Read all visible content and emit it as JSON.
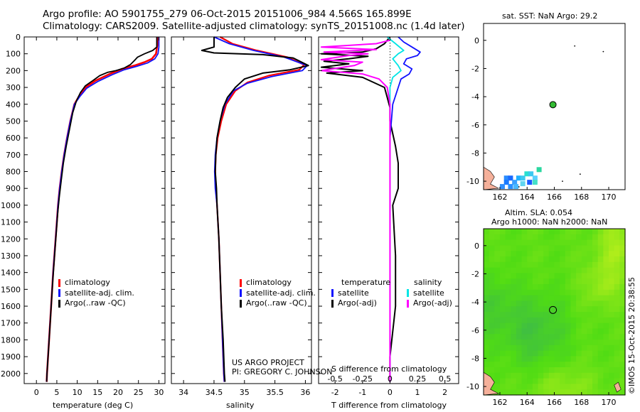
{
  "header": {
    "line1": "Argo profile: AO 5901755_279 06-Oct-2015 20151006_984 4.566S 165.899E",
    "line2": "Climatology: CARS2009. Satellite-adjusted climatology: synTS_20151008.nc (1.4d later)"
  },
  "colors": {
    "climatology": "#ff0000",
    "satellite": "#1010ff",
    "argo": "#000000",
    "salinity_satellite": "#00e5e5",
    "salinity_argo": "#ff00ff",
    "land": "#f5b09a"
  },
  "depth_axis": {
    "range": [
      0,
      2060
    ],
    "ticks": [
      0,
      100,
      200,
      300,
      400,
      500,
      600,
      700,
      800,
      900,
      1000,
      1100,
      1200,
      1300,
      1400,
      1500,
      1600,
      1700,
      1800,
      1900,
      2000
    ]
  },
  "chart_data": [
    {
      "type": "line",
      "id": "temperature",
      "xlabel": "temperature (deg C)",
      "xlim": [
        -3,
        31.5
      ],
      "xticks": [
        0,
        5,
        10,
        15,
        20,
        25,
        30
      ],
      "legend": [
        "climatology",
        "satellite-adj. clim.",
        "Argo(..raw -QC)"
      ],
      "series": [
        {
          "name": "climatology",
          "color_key": "climatology",
          "points": [
            [
              29.6,
              0
            ],
            [
              29.6,
              50
            ],
            [
              29.3,
              100
            ],
            [
              28.3,
              130
            ],
            [
              26.5,
              150
            ],
            [
              24,
              170
            ],
            [
              21,
              190
            ],
            [
              18,
              220
            ],
            [
              14.5,
              260
            ],
            [
              12,
              300
            ],
            [
              10.5,
              350
            ],
            [
              9.3,
              400
            ],
            [
              8.3,
              500
            ],
            [
              7.5,
              600
            ],
            [
              6.8,
              700
            ],
            [
              6.2,
              800
            ],
            [
              5.7,
              900
            ],
            [
              5.3,
              1000
            ],
            [
              4.7,
              1200
            ],
            [
              4.1,
              1400
            ],
            [
              3.6,
              1600
            ],
            [
              3.1,
              1800
            ],
            [
              2.6,
              2000
            ],
            [
              2.5,
              2050
            ]
          ]
        },
        {
          "name": "satellite-adj. clim.",
          "color_key": "satellite",
          "points": [
            [
              30,
              0
            ],
            [
              30,
              60
            ],
            [
              29.8,
              100
            ],
            [
              29,
              130
            ],
            [
              27.2,
              155
            ],
            [
              24.5,
              175
            ],
            [
              21.5,
              195
            ],
            [
              18.5,
              225
            ],
            [
              15,
              265
            ],
            [
              12.3,
              305
            ],
            [
              10.6,
              355
            ],
            [
              9.3,
              400
            ],
            [
              8.3,
              500
            ],
            [
              7.5,
              600
            ],
            [
              6.8,
              700
            ],
            [
              6.2,
              800
            ],
            [
              5.7,
              900
            ],
            [
              5.3,
              1000
            ],
            [
              4.7,
              1200
            ],
            [
              4.1,
              1400
            ],
            [
              3.6,
              1600
            ],
            [
              3.1,
              1800
            ],
            [
              2.6,
              2000
            ],
            [
              2.5,
              2050
            ]
          ]
        },
        {
          "name": "Argo(..raw -QC)",
          "color_key": "argo",
          "points": [
            [
              29.5,
              0
            ],
            [
              29.5,
              60
            ],
            [
              28.5,
              80
            ],
            [
              26.5,
              100
            ],
            [
              24.8,
              120
            ],
            [
              24,
              140
            ],
            [
              23,
              165
            ],
            [
              21.5,
              185
            ],
            [
              19.5,
              200
            ],
            [
              17.5,
              210
            ],
            [
              15.5,
              230
            ],
            [
              13.8,
              260
            ],
            [
              12,
              290
            ],
            [
              10.8,
              330
            ],
            [
              9.8,
              380
            ],
            [
              8.9,
              450
            ],
            [
              8.1,
              550
            ],
            [
              7.3,
              650
            ],
            [
              6.6,
              750
            ],
            [
              6.1,
              850
            ],
            [
              5.6,
              950
            ],
            [
              5.2,
              1050
            ],
            [
              4.6,
              1250
            ],
            [
              4,
              1450
            ],
            [
              3.5,
              1650
            ],
            [
              3,
              1850
            ],
            [
              2.6,
              2000
            ],
            [
              2.5,
              2050
            ]
          ]
        }
      ]
    },
    {
      "type": "line",
      "id": "salinity",
      "xlabel": "salinity",
      "xlim": [
        33.8,
        36.1
      ],
      "xticks": [
        34,
        34.5,
        35,
        35.5,
        36
      ],
      "xticklabels": [
        "34",
        "34.5",
        "35",
        "35.5",
        "36"
      ],
      "legend": [
        "climatology",
        "satellite-adj. clim.",
        "Argo(..raw -QC)"
      ],
      "series": [
        {
          "name": "climatology",
          "color_key": "climatology",
          "points": [
            [
              34.6,
              0
            ],
            [
              34.8,
              40
            ],
            [
              35.2,
              80
            ],
            [
              35.7,
              120
            ],
            [
              35.98,
              165
            ],
            [
              35.9,
              195
            ],
            [
              35.4,
              230
            ],
            [
              35.05,
              270
            ],
            [
              34.85,
              320
            ],
            [
              34.7,
              400
            ],
            [
              34.62,
              500
            ],
            [
              34.56,
              600
            ],
            [
              34.53,
              700
            ],
            [
              34.52,
              800
            ],
            [
              34.53,
              900
            ],
            [
              34.55,
              1000
            ],
            [
              34.58,
              1200
            ],
            [
              34.6,
              1400
            ],
            [
              34.62,
              1600
            ],
            [
              34.64,
              1800
            ],
            [
              34.66,
              2000
            ],
            [
              34.67,
              2050
            ]
          ]
        },
        {
          "name": "satellite-adj. clim.",
          "color_key": "satellite",
          "points": [
            [
              34.5,
              0
            ],
            [
              34.75,
              40
            ],
            [
              35.15,
              80
            ],
            [
              35.65,
              120
            ],
            [
              36.03,
              170
            ],
            [
              35.95,
              200
            ],
            [
              35.45,
              235
            ],
            [
              35.05,
              275
            ],
            [
              34.82,
              320
            ],
            [
              34.68,
              400
            ],
            [
              34.6,
              500
            ],
            [
              34.55,
              600
            ],
            [
              34.52,
              700
            ],
            [
              34.51,
              800
            ],
            [
              34.52,
              900
            ],
            [
              34.55,
              1000
            ],
            [
              34.58,
              1200
            ],
            [
              34.6,
              1400
            ],
            [
              34.62,
              1600
            ],
            [
              34.64,
              1800
            ],
            [
              34.66,
              2000
            ],
            [
              34.67,
              2050
            ]
          ]
        },
        {
          "name": "Argo(..raw -QC)",
          "color_key": "argo",
          "points": [
            [
              34.5,
              0
            ],
            [
              34.5,
              60
            ],
            [
              34.3,
              80
            ],
            [
              34.5,
              95
            ],
            [
              35.3,
              105
            ],
            [
              35.8,
              125
            ],
            [
              36.05,
              170
            ],
            [
              35.75,
              195
            ],
            [
              35.3,
              215
            ],
            [
              35.0,
              250
            ],
            [
              34.85,
              300
            ],
            [
              34.72,
              360
            ],
            [
              34.65,
              420
            ],
            [
              34.6,
              500
            ],
            [
              34.55,
              600
            ],
            [
              34.53,
              700
            ],
            [
              34.52,
              800
            ],
            [
              34.54,
              900
            ],
            [
              34.55,
              1000
            ],
            [
              34.58,
              1200
            ],
            [
              34.6,
              1400
            ],
            [
              34.62,
              1600
            ],
            [
              34.65,
              1800
            ],
            [
              34.67,
              2000
            ],
            [
              34.68,
              2050
            ]
          ]
        }
      ]
    },
    {
      "type": "line",
      "id": "difference",
      "xlabel": "T difference from climatology",
      "xlabel_top": "S difference from climatology",
      "xlim": [
        -2.6,
        2.5
      ],
      "xticks": [
        -2,
        -1,
        0,
        1,
        2
      ],
      "xticklabels": [
        "-2",
        "-1",
        "0",
        "1",
        "2"
      ],
      "top_ticks": [
        -0.5,
        -0.25,
        0,
        0.25,
        0.5
      ],
      "top_ticklabels": [
        "-0.5",
        "-0.25",
        "0",
        "0.25",
        "0.5"
      ],
      "top_scale": 4,
      "legend": {
        "temperature": [
          "satellite",
          "Argo(-adj)"
        ],
        "salinity": [
          "satellite",
          "Argo(-adj)"
        ],
        "headers": [
          "temperature",
          "salinity"
        ]
      },
      "series": [
        {
          "name": "T satellite",
          "color_key": "satellite",
          "points": [
            [
              0.3,
              0
            ],
            [
              0.5,
              30
            ],
            [
              0.8,
              60
            ],
            [
              1.1,
              90
            ],
            [
              1.0,
              110
            ],
            [
              0.6,
              130
            ],
            [
              0.5,
              160
            ],
            [
              0.8,
              190
            ],
            [
              0.7,
              220
            ],
            [
              0.4,
              250
            ],
            [
              0.3,
              300
            ],
            [
              0.1,
              400
            ],
            [
              0.05,
              500
            ],
            [
              0,
              600
            ],
            [
              0,
              800
            ],
            [
              0,
              2050
            ]
          ]
        },
        {
          "name": "T Argo(-adj)",
          "color_key": "argo",
          "points": [
            [
              0,
              0
            ],
            [
              -0.2,
              40
            ],
            [
              -0.5,
              70
            ],
            [
              -1.0,
              90
            ],
            [
              -2.5,
              100
            ],
            [
              -0.8,
              115
            ],
            [
              -1.5,
              130
            ],
            [
              -2.4,
              145
            ],
            [
              -1.5,
              160
            ],
            [
              -2.5,
              180
            ],
            [
              -1.0,
              200
            ],
            [
              -2.3,
              215
            ],
            [
              -1.0,
              240
            ],
            [
              -0.6,
              270
            ],
            [
              -0.2,
              300
            ],
            [
              -0.1,
              360
            ],
            [
              0,
              420
            ],
            [
              0,
              500
            ],
            [
              0.2,
              650
            ],
            [
              0.3,
              750
            ],
            [
              0.3,
              900
            ],
            [
              0.1,
              1000
            ],
            [
              0.2,
              1300
            ],
            [
              0.2,
              1600
            ],
            [
              0,
              1900
            ],
            [
              0,
              2050
            ]
          ]
        },
        {
          "name": "S satellite",
          "color_key": "salinity_satellite",
          "points": [
            [
              -0.1,
              0
            ],
            [
              0.2,
              40
            ],
            [
              0.5,
              80
            ],
            [
              0.3,
              100
            ],
            [
              0.1,
              130
            ],
            [
              0.3,
              170
            ],
            [
              0.4,
              200
            ],
            [
              0.1,
              240
            ],
            [
              0,
              300
            ],
            [
              0,
              400
            ],
            [
              0,
              500
            ],
            [
              0,
              2050
            ]
          ]
        },
        {
          "name": "S Argo(-adj)",
          "color_key": "salinity_argo",
          "points": [
            [
              0,
              20
            ],
            [
              -0.5,
              40
            ],
            [
              -2.5,
              60
            ],
            [
              -0.5,
              75
            ],
            [
              -2.4,
              90
            ],
            [
              -0.8,
              100
            ],
            [
              -1.5,
              110
            ],
            [
              -2.5,
              135
            ],
            [
              -1.0,
              150
            ],
            [
              -1.3,
              170
            ],
            [
              -2.5,
              200
            ],
            [
              -1.0,
              220
            ],
            [
              -0.4,
              250
            ],
            [
              -0.1,
              300
            ],
            [
              0,
              400
            ],
            [
              0,
              2050
            ]
          ]
        }
      ]
    }
  ],
  "project_label": {
    "line1": "US ARGO PROJECT",
    "line2": "PI: GREGORY C. JOHNSON"
  },
  "maps": [
    {
      "id": "sst",
      "title": "sat. SST: NaN Argo: 29.2",
      "xlim": [
        160.8,
        171.2
      ],
      "ylim": [
        -10.6,
        1.2
      ],
      "xticks": [
        162,
        164,
        166,
        168,
        170
      ],
      "yticks": [
        0,
        -2,
        -4,
        -6,
        -8,
        -10
      ],
      "profile_lon": 165.899,
      "profile_lat": -4.566
    },
    {
      "id": "sla",
      "title_line1": "Altim. SLA: 0.054",
      "title_line2": "Argo h1000: NaN h2000: NaN",
      "xlim": [
        160.8,
        171.2
      ],
      "ylim": [
        -10.6,
        1.2
      ],
      "xticks": [
        162,
        164,
        166,
        168,
        170
      ],
      "yticks": [
        0,
        -2,
        -4,
        -6,
        -8,
        -10
      ],
      "profile_lon": 165.899,
      "profile_lat": -4.566
    }
  ],
  "footer": {
    "credit": "©IMOS 15-Oct-2015 20:38:55"
  }
}
